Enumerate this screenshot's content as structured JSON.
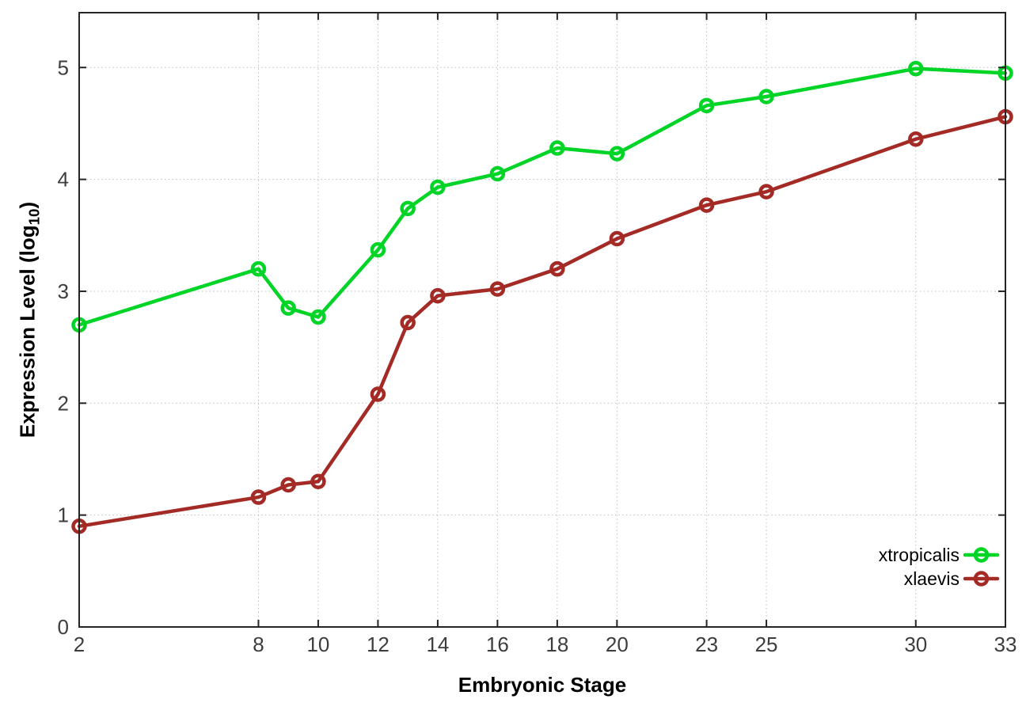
{
  "chart_data": {
    "type": "line",
    "title": "",
    "xlabel": "Embryonic Stage",
    "ylabel": "Expression Level (log10)",
    "ylabel_rich": {
      "pre": "Expression Level (log",
      "sub": "10",
      "post": ")"
    },
    "xlim": [
      2,
      33
    ],
    "ylim": [
      0,
      5.49
    ],
    "x_ticks": [
      2,
      8,
      10,
      12,
      14,
      16,
      18,
      20,
      23,
      25,
      30,
      33
    ],
    "y_ticks": [
      0,
      1,
      2,
      3,
      4,
      5
    ],
    "grid": true,
    "legend_position": "inside-bottom-right",
    "x": [
      2,
      8,
      9,
      10,
      12,
      13,
      14,
      16,
      18,
      20,
      23,
      25,
      30,
      33
    ],
    "series": [
      {
        "name": "xtropicalis",
        "color": "#00d426",
        "values": [
          2.7,
          3.2,
          2.85,
          2.77,
          3.37,
          3.74,
          3.93,
          4.05,
          4.28,
          4.23,
          4.66,
          4.74,
          4.99,
          4.95
        ]
      },
      {
        "name": "xlaevis",
        "color": "#a42a26",
        "values": [
          0.9,
          1.16,
          1.27,
          1.3,
          2.08,
          2.72,
          2.96,
          3.02,
          3.2,
          3.47,
          3.77,
          3.89,
          4.36,
          4.56
        ]
      }
    ],
    "style": {
      "axis_color": "#242424",
      "grid_color": "#bdbdbd",
      "tick_label_color": "#3d3d3d",
      "background": "#ffffff"
    }
  }
}
